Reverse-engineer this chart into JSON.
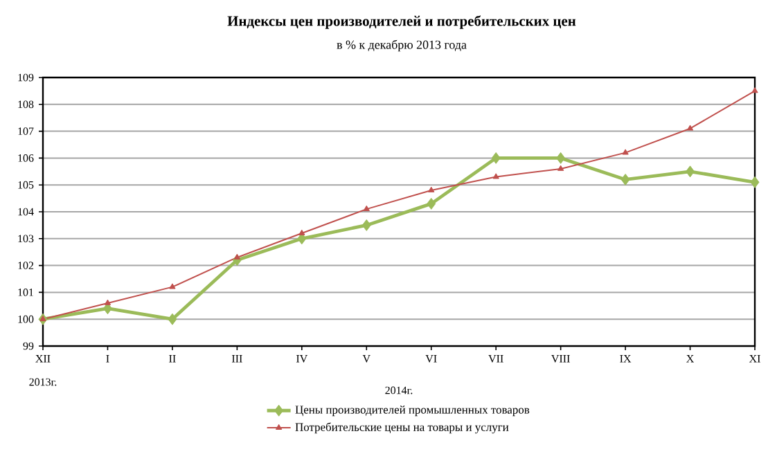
{
  "chart_data": {
    "type": "line",
    "title": "Индексы цен производителей и потребительских цен",
    "subtitle": "в % к декабрю 2013 года",
    "categories": [
      "XII",
      "I",
      "II",
      "III",
      "IV",
      "V",
      "VI",
      "VII",
      "VIII",
      "IX",
      "X",
      "XI"
    ],
    "series": [
      {
        "name": "Цены производителей  промышленных товаров",
        "color": "#9bbb59",
        "marker": "diamond",
        "values": [
          100,
          100.4,
          100.0,
          102.2,
          103.0,
          103.5,
          104.3,
          106.0,
          106.0,
          105.2,
          105.5,
          105.1
        ]
      },
      {
        "name": "Потребительские цены на товары и услуги",
        "color": "#c0504d",
        "marker": "triangle",
        "values": [
          100,
          100.6,
          101.2,
          102.3,
          103.2,
          104.1,
          104.8,
          105.3,
          105.6,
          106.2,
          107.1,
          108.5
        ]
      }
    ],
    "annotations": [
      "2013г.",
      "2014г."
    ],
    "ylim": [
      99,
      109
    ],
    "yticks": [
      99,
      100,
      101,
      102,
      103,
      104,
      105,
      106,
      107,
      108,
      109
    ],
    "grid": "y",
    "legend": "bottom"
  }
}
